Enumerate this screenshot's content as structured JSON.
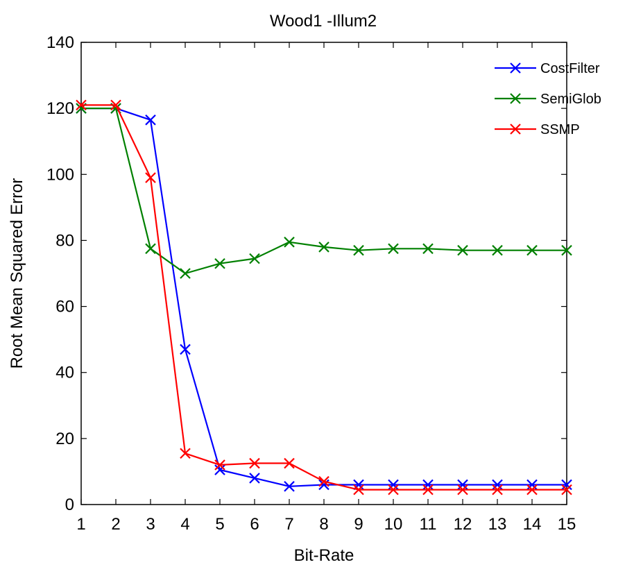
{
  "chart_data": {
    "type": "line",
    "title": "Wood1 -Illum2",
    "xlabel": "Bit-Rate",
    "ylabel": "Root Mean Squared Error",
    "xlim": [
      1,
      15
    ],
    "ylim": [
      0,
      140
    ],
    "xticks": [
      1,
      2,
      3,
      4,
      5,
      6,
      7,
      8,
      9,
      10,
      11,
      12,
      13,
      14,
      15
    ],
    "yticks": [
      0,
      20,
      40,
      60,
      80,
      100,
      120,
      140
    ],
    "grid": false,
    "legend_position": "top-right",
    "x": [
      1,
      2,
      3,
      4,
      5,
      6,
      7,
      8,
      9,
      10,
      11,
      12,
      13,
      14,
      15
    ],
    "series": [
      {
        "name": "CostFilter",
        "color": "#0000ff",
        "marker": "x",
        "values": [
          120,
          120,
          116.5,
          47,
          10.5,
          8,
          5.5,
          6,
          6,
          6,
          6,
          6,
          6,
          6,
          6
        ]
      },
      {
        "name": "SemiGlob",
        "color": "#008000",
        "marker": "x",
        "values": [
          120,
          120,
          77.5,
          70,
          73,
          74.5,
          79.5,
          78,
          77,
          77.5,
          77.5,
          77,
          77,
          77,
          77
        ]
      },
      {
        "name": "SSMP",
        "color": "#ff0000",
        "marker": "x",
        "values": [
          121,
          121,
          99,
          15.5,
          12,
          12.5,
          12.5,
          7,
          4.5,
          4.5,
          4.5,
          4.5,
          4.5,
          4.5,
          4.5
        ]
      }
    ]
  }
}
